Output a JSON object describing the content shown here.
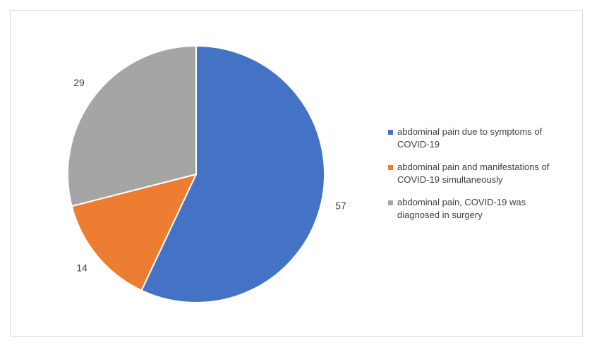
{
  "chart_data": {
    "type": "pie",
    "categories": [
      "abdominal pain due to symptoms of COVID-19",
      "abdominal pain and manifestations of COVID-19 simultaneously",
      "abdominal pain, COVID-19 was diagnosed in surgery"
    ],
    "values": [
      57,
      14,
      29
    ],
    "colors": [
      "#4472c4",
      "#ed7d31",
      "#a5a5a5"
    ],
    "legend": "right"
  }
}
